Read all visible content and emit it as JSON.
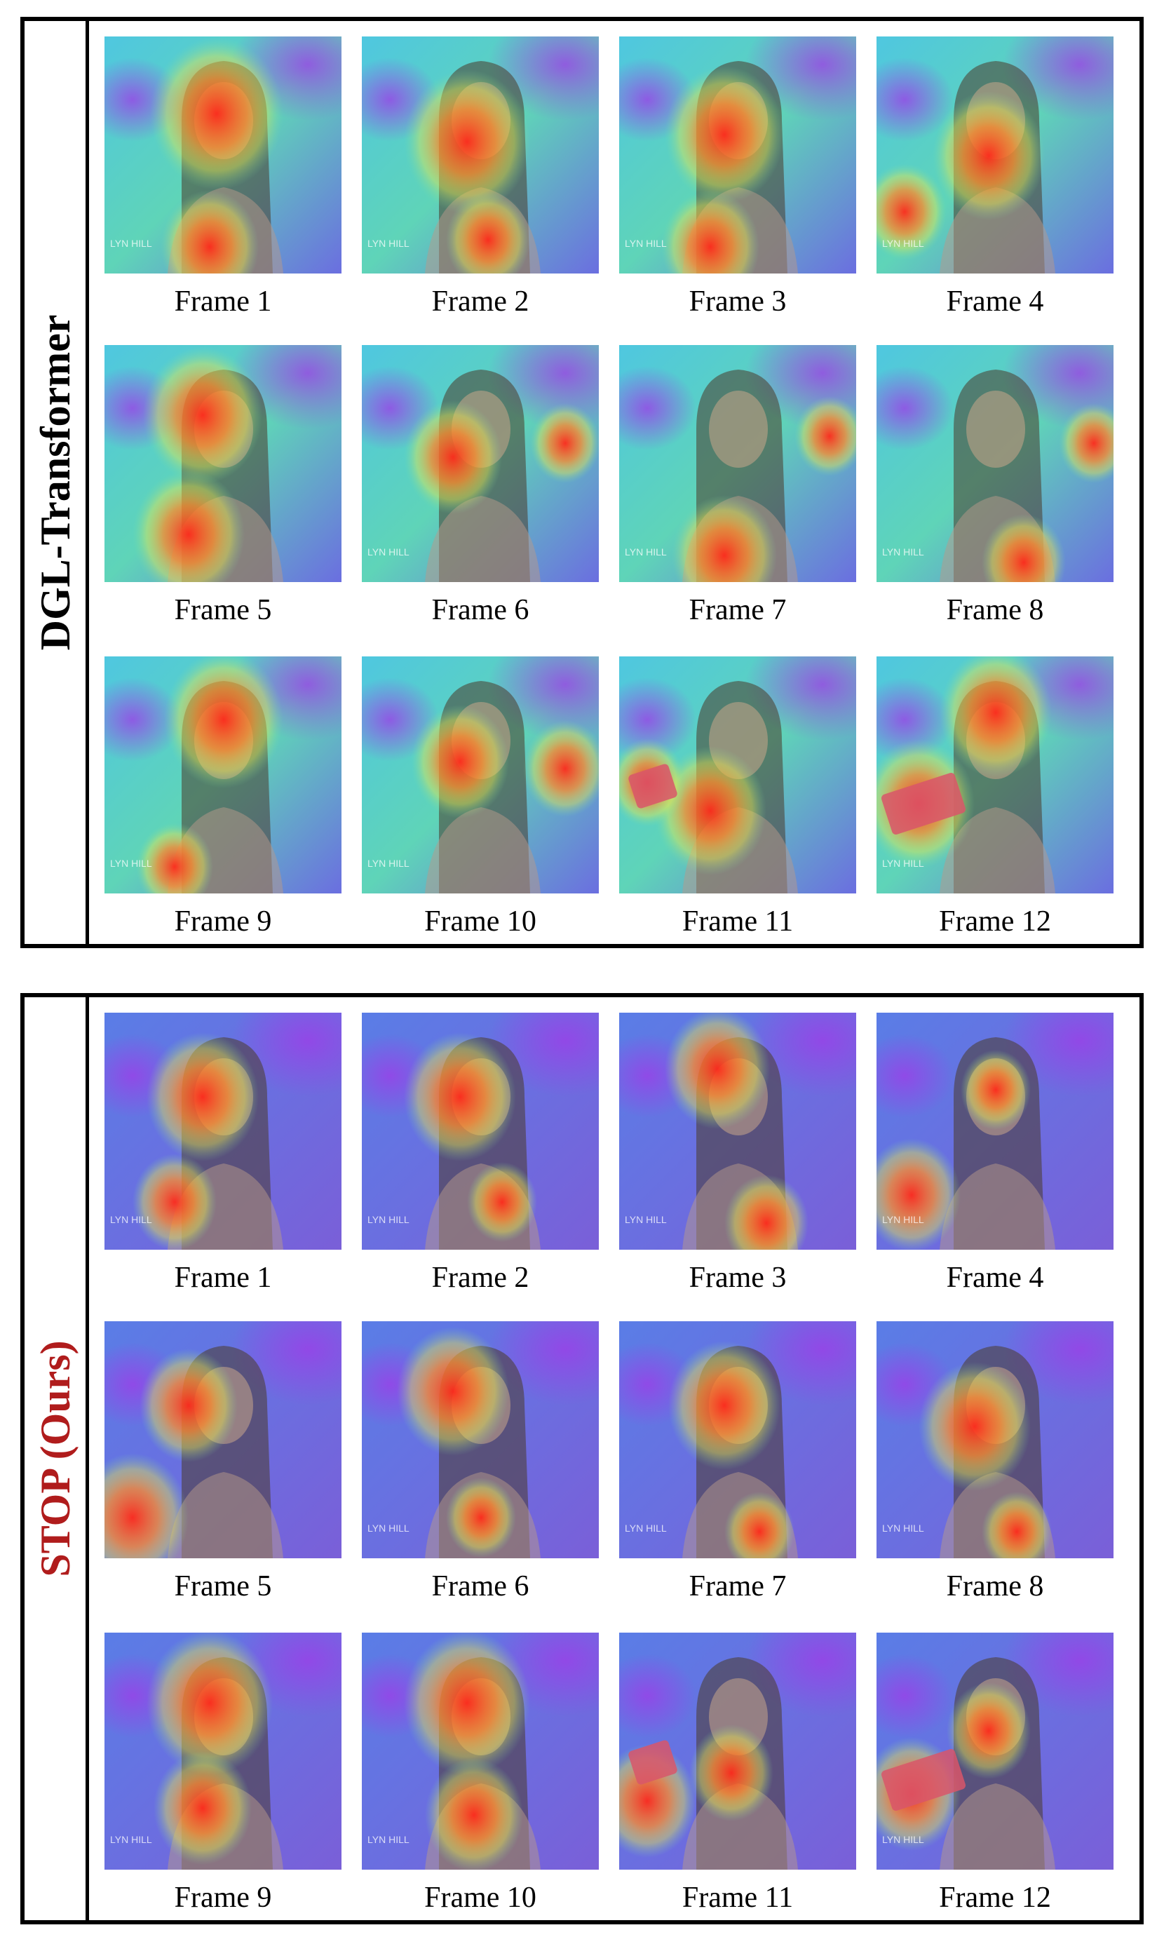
{
  "panels": [
    {
      "label": "DGL-Transformer",
      "label_color": "#000000",
      "frames": [
        {
          "caption": "Frame 1",
          "watermark": "LYN HILL"
        },
        {
          "caption": "Frame 2",
          "watermark": "LYN HILL"
        },
        {
          "caption": "Frame 3",
          "watermark": "LYN HILL"
        },
        {
          "caption": "Frame 4",
          "watermark": "LYN HILL"
        },
        {
          "caption": "Frame 5",
          "watermark": ""
        },
        {
          "caption": "Frame 6",
          "watermark": "LYN HILL"
        },
        {
          "caption": "Frame 7",
          "watermark": "LYN HILL"
        },
        {
          "caption": "Frame 8",
          "watermark": "LYN HILL"
        },
        {
          "caption": "Frame 9",
          "watermark": "LYN HILL"
        },
        {
          "caption": "Frame 10",
          "watermark": "LYN HILL"
        },
        {
          "caption": "Frame 11",
          "watermark": ""
        },
        {
          "caption": "Frame 12",
          "watermark": "LYN HILL"
        }
      ]
    },
    {
      "label": "STOP (Ours)",
      "label_color": "#b01c1c",
      "frames": [
        {
          "caption": "Frame 1",
          "watermark": "LYN HILL"
        },
        {
          "caption": "Frame 2",
          "watermark": "LYN HILL"
        },
        {
          "caption": "Frame 3",
          "watermark": "LYN HILL"
        },
        {
          "caption": "Frame 4",
          "watermark": "LYN HILL"
        },
        {
          "caption": "Frame 5",
          "watermark": ""
        },
        {
          "caption": "Frame 6",
          "watermark": "LYN HILL"
        },
        {
          "caption": "Frame 7",
          "watermark": "LYN HILL"
        },
        {
          "caption": "Frame 8",
          "watermark": "LYN HILL"
        },
        {
          "caption": "Frame 9",
          "watermark": "LYN HILL"
        },
        {
          "caption": "Frame 10",
          "watermark": "LYN HILL"
        },
        {
          "caption": "Frame 11",
          "watermark": ""
        },
        {
          "caption": "Frame 12",
          "watermark": "LYN HILL"
        }
      ]
    }
  ]
}
